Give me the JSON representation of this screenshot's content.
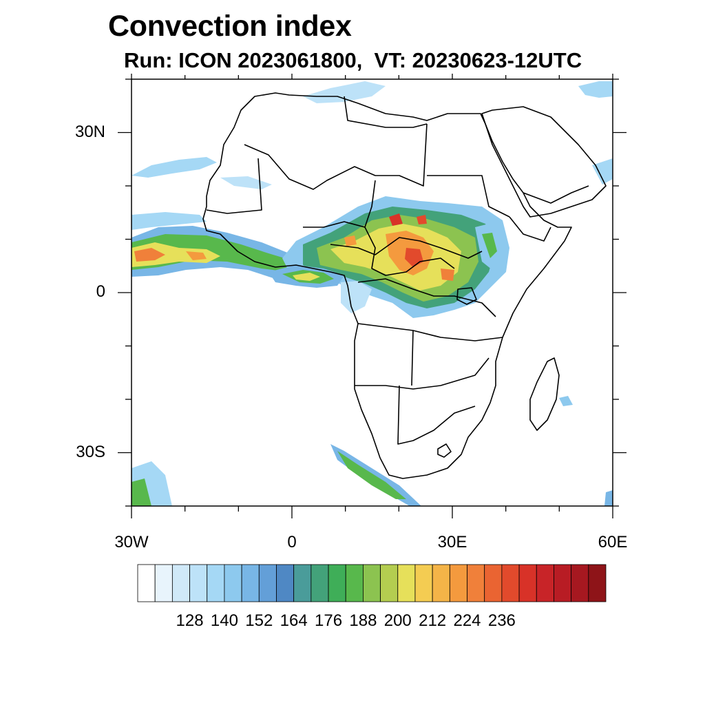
{
  "title": "Convection index",
  "subtitle": "Run: ICON 2023061800,  VT: 20230623-12UTC",
  "map": {
    "lon_range": [
      -30,
      60
    ],
    "lat_range": [
      -40,
      40
    ],
    "lat_labels": [
      {
        "lat": 30,
        "text": "30N"
      },
      {
        "lat": 0,
        "text": "0"
      },
      {
        "lat": -30,
        "text": "30S"
      }
    ],
    "lon_labels": [
      {
        "lon": -30,
        "text": "30W"
      },
      {
        "lon": 0,
        "text": "0"
      },
      {
        "lon": 30,
        "text": "30E"
      },
      {
        "lon": 60,
        "text": "60E"
      }
    ]
  },
  "colorbar": {
    "colors": [
      "#ffffff",
      "#e8f4fc",
      "#d0e9f8",
      "#bde2f8",
      "#a5d8f5",
      "#8dc9ee",
      "#78b6e6",
      "#639fd8",
      "#4f88c4",
      "#4a9c9a",
      "#43a27a",
      "#3fae58",
      "#58b84c",
      "#8cc350",
      "#b4cd50",
      "#e6e05a",
      "#f4cc52",
      "#f4b448",
      "#f49a3e",
      "#f0803a",
      "#ea6432",
      "#e24a2c",
      "#d83228",
      "#c82428",
      "#b81c24",
      "#a61820",
      "#8e1418"
    ],
    "labels": [
      "128",
      "140",
      "152",
      "164",
      "176",
      "188",
      "200",
      "212",
      "224",
      "236"
    ]
  },
  "colors": {
    "coast": "#000000",
    "frame": "#000000"
  }
}
